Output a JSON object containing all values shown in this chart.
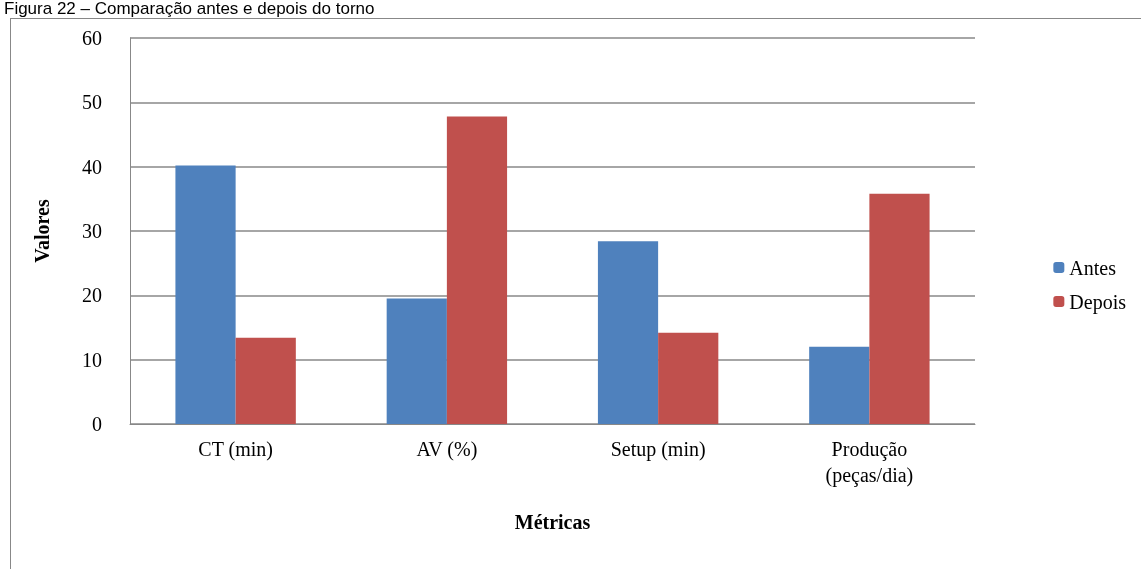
{
  "chart_data": {
    "type": "bar",
    "title": "Figura 22 – Comparação antes e depois do torno",
    "xlabel": "Métricas",
    "ylabel": "Valores",
    "categories": [
      "CT (min)",
      "AV (%)",
      "Setup (min)",
      "Produção\n(peças/dia)"
    ],
    "series": [
      {
        "name": "Antes",
        "color": "#4f81bd",
        "values": [
          40.2,
          19.5,
          28.4,
          12.0
        ]
      },
      {
        "name": "Depois",
        "color": "#c0504d",
        "values": [
          13.4,
          47.8,
          14.2,
          35.8
        ]
      }
    ],
    "ylim": [
      0,
      60
    ],
    "yticks": [
      0,
      10,
      20,
      30,
      40,
      50,
      60
    ],
    "grid": "y",
    "legend": "right"
  }
}
